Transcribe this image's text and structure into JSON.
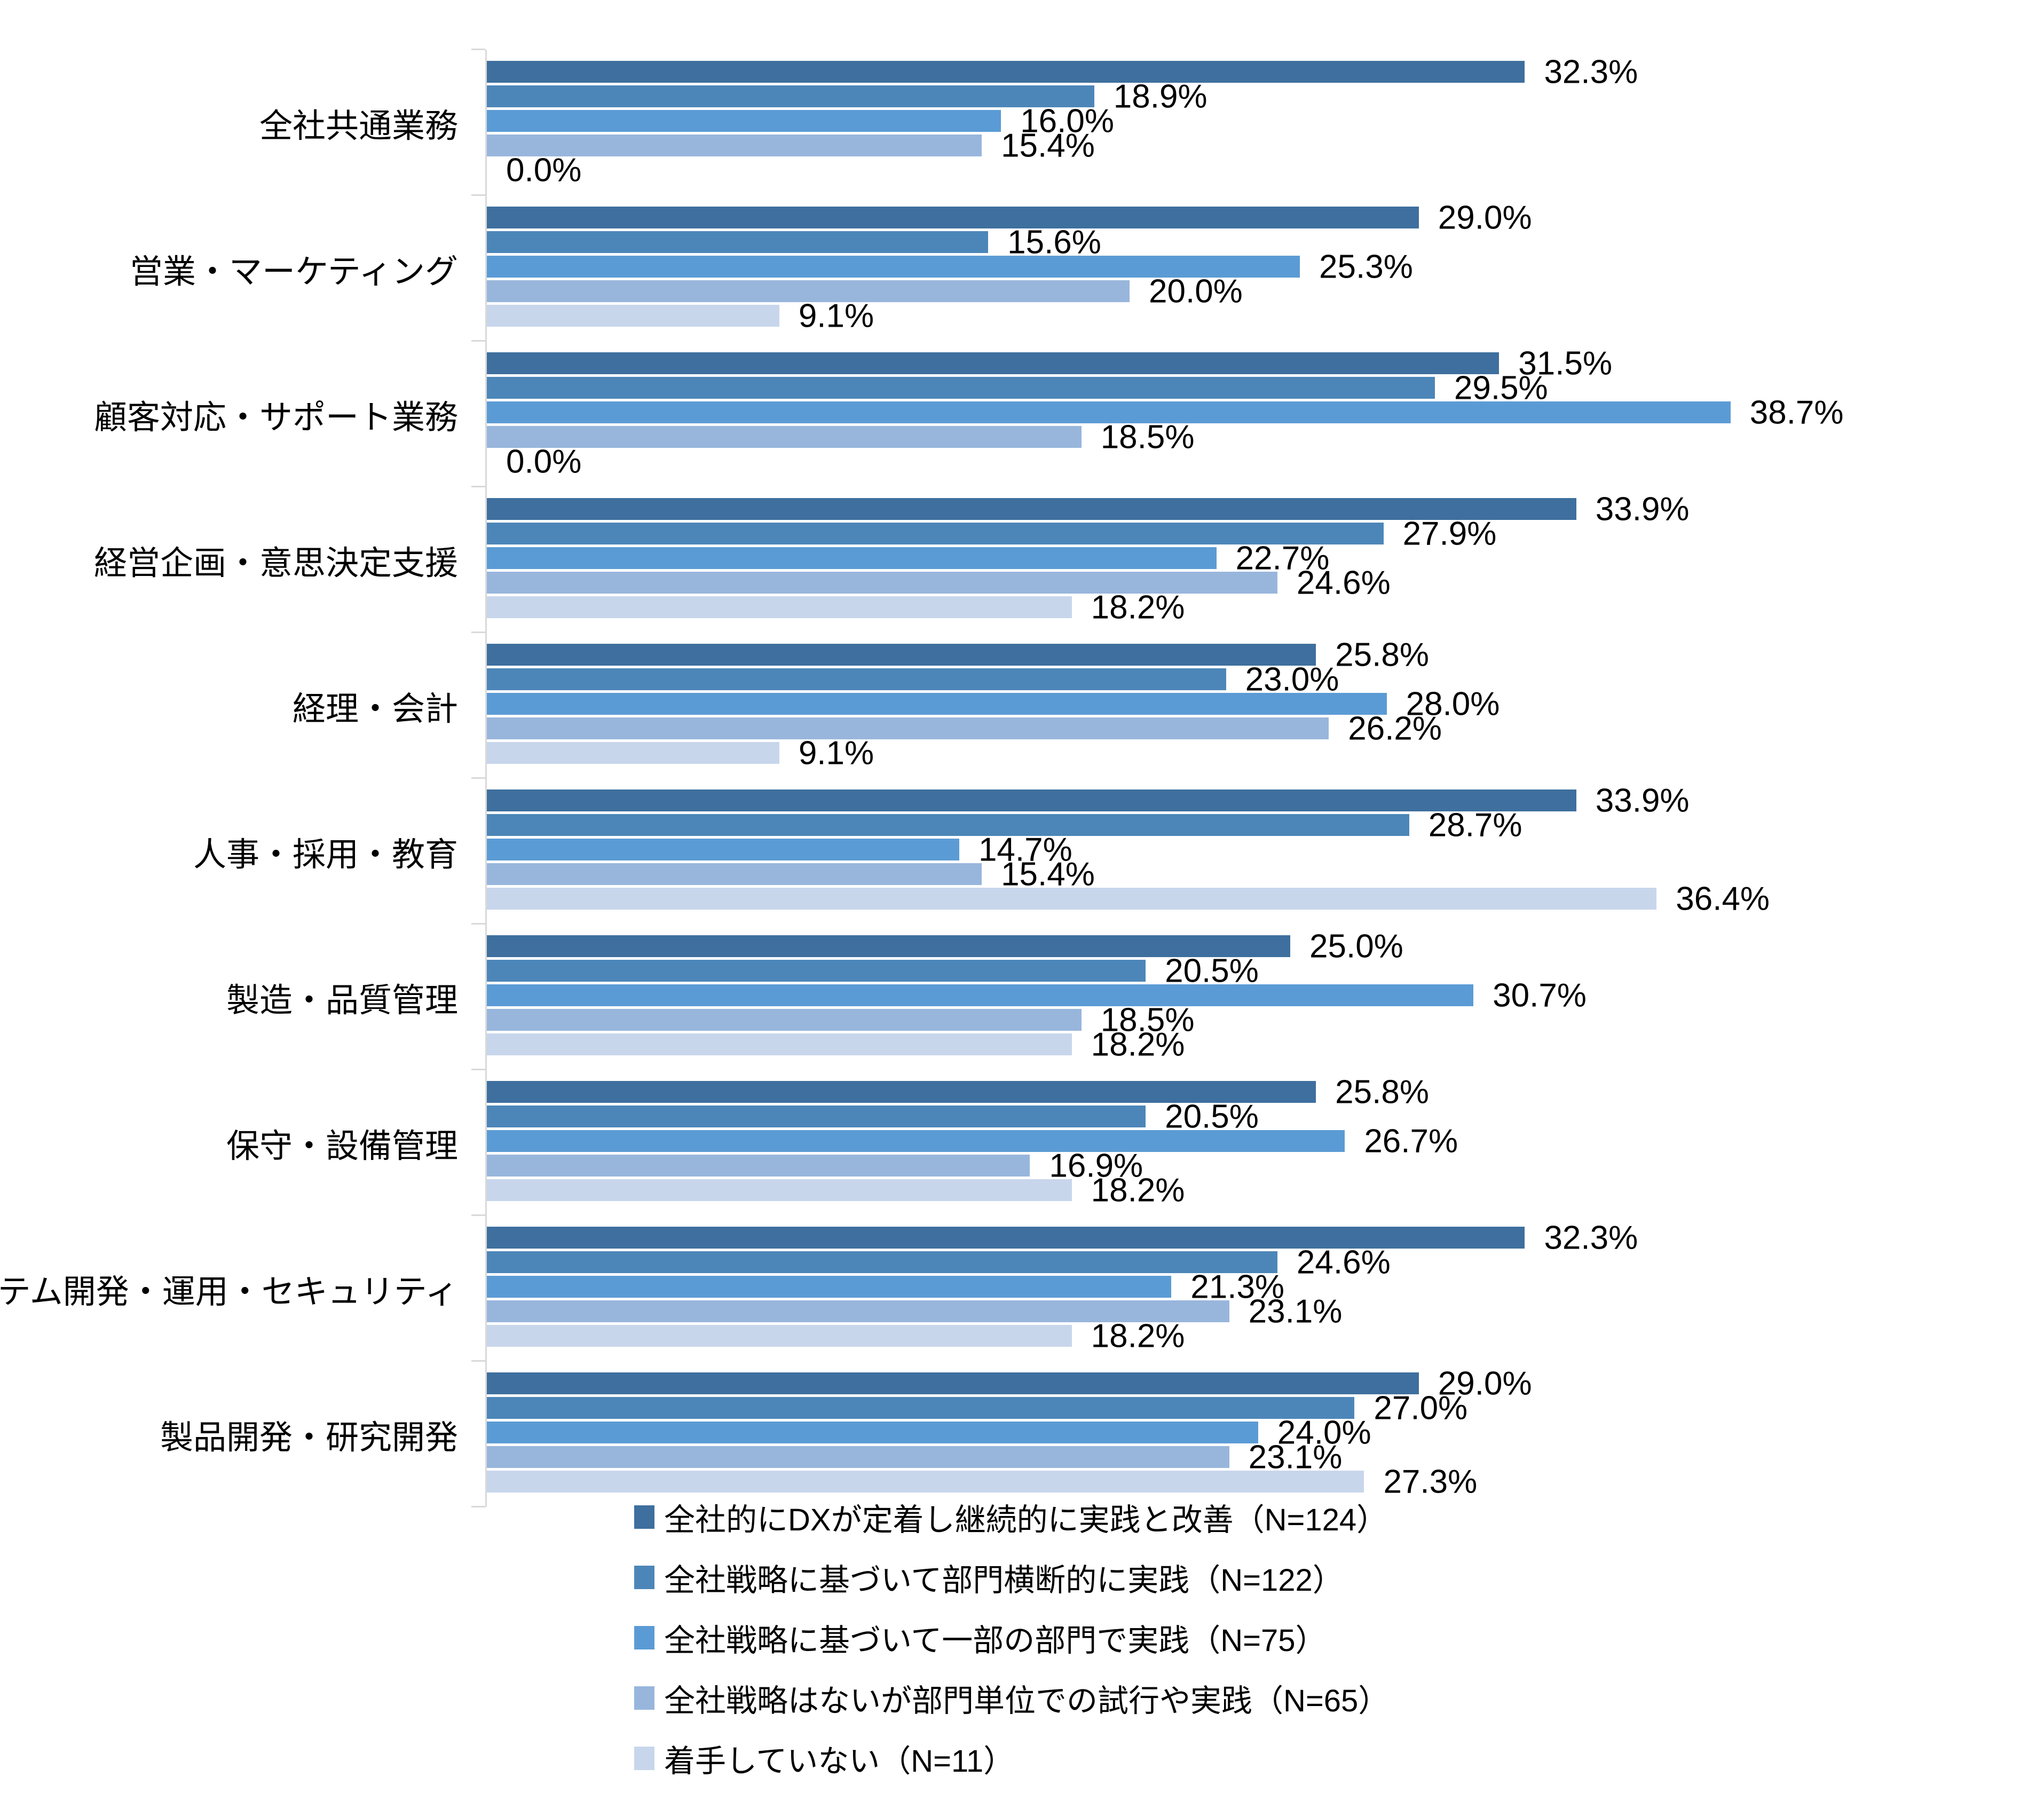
{
  "chart_data": {
    "type": "bar",
    "orientation": "horizontal",
    "title": "",
    "xlabel": "",
    "ylabel": "",
    "value_suffix": "%",
    "value_decimals": 1,
    "xlim": [
      0,
      45
    ],
    "grid": false,
    "legend_position": "bottom-left",
    "axis_color": "#d9d9d9",
    "text_color": "#000000",
    "categories": [
      "全社共通業務",
      "営業・マーケティング",
      "顧客対応・サポート業務",
      "経営企画・意思決定支援",
      "経理・会計",
      "人事・採用・教育",
      "製造・品質管理",
      "保守・設備管理",
      "システム開発・運用・セキュリティ",
      "製品開発・研究開発"
    ],
    "series": [
      {
        "name": "全社的にDXが定着し継続的に実践と改善（N=124）",
        "color": "#3e6f9e",
        "values": [
          32.3,
          29.0,
          31.5,
          33.9,
          25.8,
          33.9,
          25.0,
          25.8,
          32.3,
          29.0
        ]
      },
      {
        "name": "全社戦略に基づいて部門横断的に実践（N=122）",
        "color": "#4c86b8",
        "values": [
          18.9,
          15.6,
          29.5,
          27.9,
          23.0,
          28.7,
          20.5,
          20.5,
          24.6,
          27.0
        ]
      },
      {
        "name": "全社戦略に基づいて一部の部門で実践（N=75）",
        "color": "#5b9bd5",
        "values": [
          16.0,
          25.3,
          38.7,
          22.7,
          28.0,
          14.7,
          30.7,
          26.7,
          21.3,
          24.0
        ]
      },
      {
        "name": "全社戦略はないが部門単位での試行や実践（N=65）",
        "color": "#98b6dc",
        "values": [
          15.4,
          20.0,
          18.5,
          24.6,
          26.2,
          15.4,
          18.5,
          16.9,
          23.1,
          23.1
        ]
      },
      {
        "name": "着手していない（N=11）",
        "color": "#c8d6ec",
        "values": [
          0.0,
          9.1,
          0.0,
          18.2,
          9.1,
          36.4,
          18.2,
          18.2,
          18.2,
          27.3
        ]
      }
    ]
  }
}
